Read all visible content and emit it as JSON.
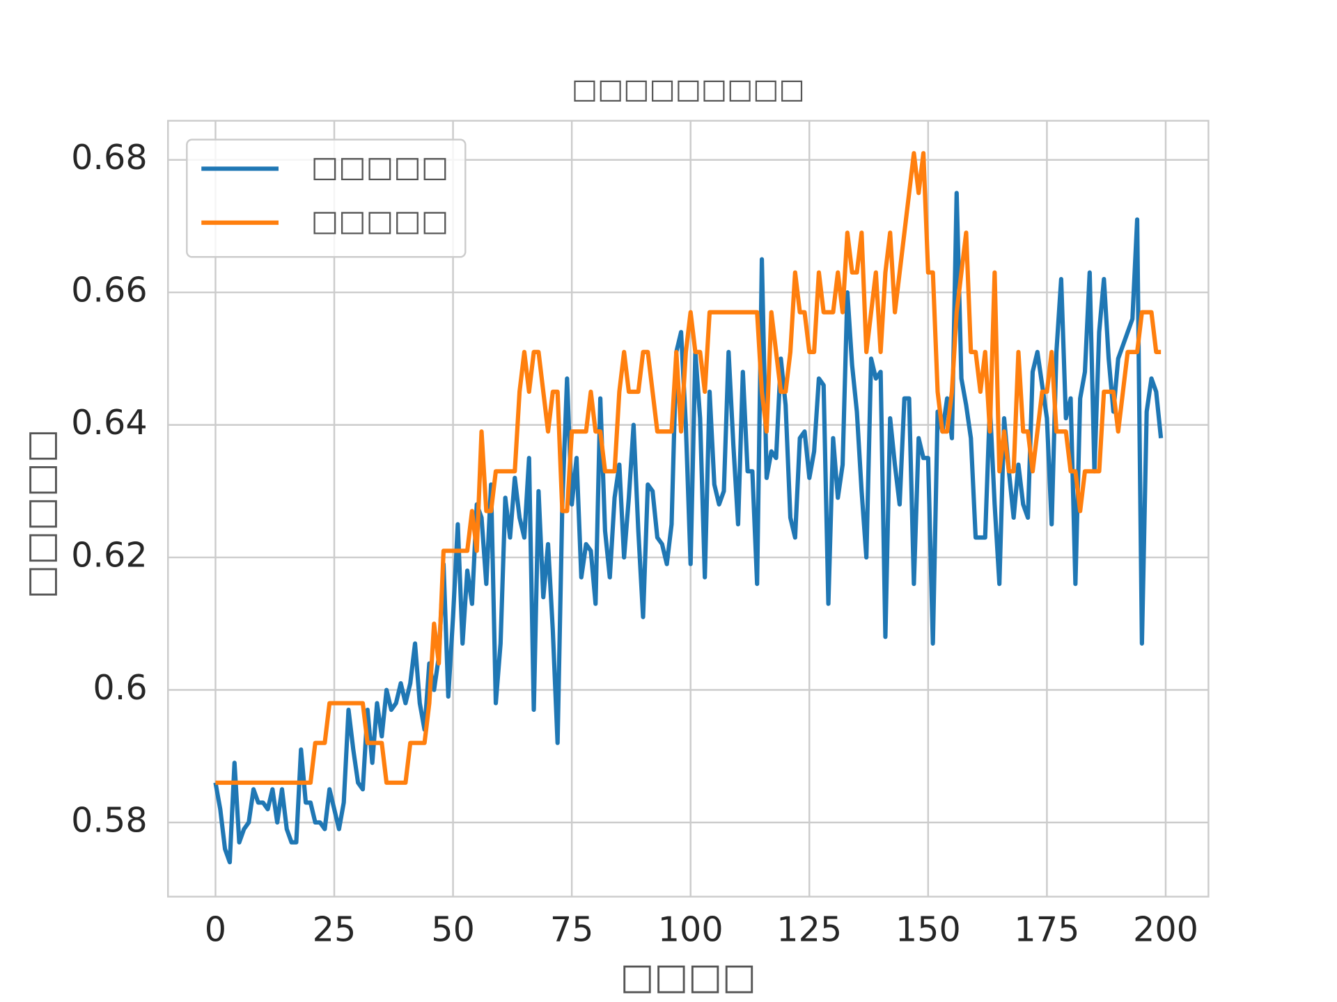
{
  "chart_data": {
    "type": "line",
    "title": "□□□□□□□□□",
    "x_label": "□□□□",
    "y_label": "□□□□□",
    "x": [
      0,
      1,
      2,
      3,
      4,
      5,
      6,
      7,
      8,
      9,
      10,
      11,
      12,
      13,
      14,
      15,
      16,
      17,
      18,
      19,
      20,
      21,
      22,
      23,
      24,
      25,
      26,
      27,
      28,
      29,
      30,
      31,
      32,
      33,
      34,
      35,
      36,
      37,
      38,
      39,
      40,
      41,
      42,
      43,
      44,
      45,
      46,
      47,
      48,
      49,
      50,
      51,
      52,
      53,
      54,
      55,
      56,
      57,
      58,
      59,
      60,
      61,
      62,
      63,
      64,
      65,
      66,
      67,
      68,
      69,
      70,
      71,
      72,
      73,
      74,
      75,
      76,
      77,
      78,
      79,
      80,
      81,
      82,
      83,
      84,
      85,
      86,
      87,
      88,
      89,
      90,
      91,
      92,
      93,
      94,
      95,
      96,
      97,
      98,
      99,
      100,
      101,
      102,
      103,
      104,
      105,
      106,
      107,
      108,
      109,
      110,
      111,
      112,
      113,
      114,
      115,
      116,
      117,
      118,
      119,
      120,
      121,
      122,
      123,
      124,
      125,
      126,
      127,
      128,
      129,
      130,
      131,
      132,
      133,
      134,
      135,
      136,
      137,
      138,
      139,
      140,
      141,
      142,
      143,
      144,
      145,
      146,
      147,
      148,
      149,
      150,
      151,
      152,
      153,
      154,
      155,
      156,
      157,
      158,
      159,
      160,
      161,
      162,
      163,
      164,
      165,
      166,
      167,
      168,
      169,
      170,
      171,
      172,
      173,
      174,
      175,
      176,
      177,
      178,
      179,
      180,
      181,
      182,
      183,
      184,
      185,
      186,
      187,
      188,
      189,
      190,
      191,
      192,
      193,
      194,
      195,
      196,
      197,
      198,
      199
    ],
    "series": [
      {
        "name": "□□□□□",
        "color": "#1f77b4",
        "values": [
          0.586,
          0.582,
          0.576,
          0.574,
          0.589,
          0.577,
          0.579,
          0.58,
          0.585,
          0.583,
          0.583,
          0.582,
          0.585,
          0.58,
          0.585,
          0.579,
          0.577,
          0.577,
          0.591,
          0.583,
          0.583,
          0.58,
          0.58,
          0.579,
          0.585,
          0.582,
          0.579,
          0.583,
          0.597,
          0.591,
          0.586,
          0.585,
          0.597,
          0.589,
          0.598,
          0.593,
          0.6,
          0.597,
          0.598,
          0.601,
          0.598,
          0.601,
          0.607,
          0.598,
          0.594,
          0.604,
          0.6,
          0.605,
          0.619,
          0.599,
          0.611,
          0.625,
          0.607,
          0.618,
          0.613,
          0.628,
          0.626,
          0.616,
          0.631,
          0.598,
          0.607,
          0.629,
          0.623,
          0.632,
          0.626,
          0.623,
          0.635,
          0.597,
          0.63,
          0.614,
          0.622,
          0.609,
          0.592,
          0.628,
          0.647,
          0.628,
          0.635,
          0.617,
          0.622,
          0.621,
          0.613,
          0.644,
          0.624,
          0.617,
          0.629,
          0.634,
          0.62,
          0.629,
          0.64,
          0.624,
          0.611,
          0.631,
          0.63,
          0.623,
          0.622,
          0.619,
          0.625,
          0.651,
          0.654,
          0.64,
          0.619,
          0.651,
          0.641,
          0.617,
          0.645,
          0.631,
          0.628,
          0.63,
          0.651,
          0.637,
          0.625,
          0.648,
          0.633,
          0.633,
          0.616,
          0.665,
          0.632,
          0.636,
          0.635,
          0.65,
          0.643,
          0.626,
          0.623,
          0.638,
          0.639,
          0.632,
          0.636,
          0.647,
          0.646,
          0.613,
          0.638,
          0.629,
          0.634,
          0.66,
          0.649,
          0.642,
          0.63,
          0.62,
          0.65,
          0.647,
          0.648,
          0.608,
          0.641,
          0.634,
          0.628,
          0.644,
          0.644,
          0.616,
          0.638,
          0.635,
          0.635,
          0.607,
          0.642,
          0.639,
          0.644,
          0.638,
          0.675,
          0.647,
          0.643,
          0.638,
          0.623,
          0.623,
          0.623,
          0.643,
          0.628,
          0.616,
          0.641,
          0.633,
          0.626,
          0.634,
          0.628,
          0.626,
          0.648,
          0.651,
          0.646,
          0.641,
          0.625,
          0.651,
          0.662,
          0.641,
          0.644,
          0.616,
          0.644,
          0.648,
          0.663,
          0.633,
          0.654,
          0.662,
          0.65,
          0.642,
          0.65,
          0.652,
          0.654,
          0.656,
          0.671,
          0.607,
          0.642,
          0.647,
          0.645,
          0.638
        ]
      },
      {
        "name": "□□□□□",
        "color": "#ff7f0e",
        "values": [
          0.586,
          0.586,
          0.586,
          0.586,
          0.586,
          0.586,
          0.586,
          0.586,
          0.586,
          0.586,
          0.586,
          0.586,
          0.586,
          0.586,
          0.586,
          0.586,
          0.586,
          0.586,
          0.586,
          0.586,
          0.586,
          0.592,
          0.592,
          0.592,
          0.598,
          0.598,
          0.598,
          0.598,
          0.598,
          0.598,
          0.598,
          0.598,
          0.592,
          0.592,
          0.592,
          0.592,
          0.586,
          0.586,
          0.586,
          0.586,
          0.586,
          0.592,
          0.592,
          0.592,
          0.592,
          0.598,
          0.61,
          0.604,
          0.621,
          0.621,
          0.621,
          0.621,
          0.621,
          0.621,
          0.627,
          0.621,
          0.639,
          0.627,
          0.627,
          0.633,
          0.633,
          0.633,
          0.633,
          0.633,
          0.645,
          0.651,
          0.645,
          0.651,
          0.651,
          0.645,
          0.639,
          0.645,
          0.645,
          0.627,
          0.627,
          0.639,
          0.639,
          0.639,
          0.639,
          0.645,
          0.639,
          0.639,
          0.633,
          0.633,
          0.633,
          0.645,
          0.651,
          0.645,
          0.645,
          0.645,
          0.651,
          0.651,
          0.645,
          0.639,
          0.639,
          0.639,
          0.639,
          0.651,
          0.639,
          0.651,
          0.657,
          0.651,
          0.651,
          0.645,
          0.657,
          0.657,
          0.657,
          0.657,
          0.657,
          0.657,
          0.657,
          0.657,
          0.657,
          0.657,
          0.657,
          0.645,
          0.639,
          0.657,
          0.651,
          0.645,
          0.645,
          0.651,
          0.663,
          0.657,
          0.657,
          0.651,
          0.651,
          0.663,
          0.657,
          0.657,
          0.657,
          0.663,
          0.657,
          0.669,
          0.663,
          0.663,
          0.669,
          0.651,
          0.657,
          0.663,
          0.651,
          0.663,
          0.669,
          0.657,
          0.663,
          0.669,
          0.675,
          0.681,
          0.675,
          0.681,
          0.663,
          0.663,
          0.645,
          0.639,
          0.639,
          0.645,
          0.657,
          0.663,
          0.669,
          0.651,
          0.651,
          0.645,
          0.651,
          0.639,
          0.663,
          0.633,
          0.639,
          0.633,
          0.633,
          0.651,
          0.639,
          0.639,
          0.633,
          0.639,
          0.645,
          0.645,
          0.651,
          0.639,
          0.639,
          0.639,
          0.633,
          0.633,
          0.627,
          0.633,
          0.633,
          0.633,
          0.633,
          0.645,
          0.645,
          0.645,
          0.639,
          0.645,
          0.651,
          0.651,
          0.651,
          0.657,
          0.657,
          0.657,
          0.651,
          0.651
        ]
      }
    ],
    "xlim": [
      -10,
      209
    ],
    "ylim": [
      0.5688,
      0.6859
    ],
    "xticks": [
      0,
      25,
      50,
      75,
      100,
      125,
      150,
      175,
      200
    ],
    "yticks": [
      0.58,
      0.6,
      0.62,
      0.64,
      0.66,
      0.68
    ],
    "grid": true,
    "legend": "upper-left"
  }
}
